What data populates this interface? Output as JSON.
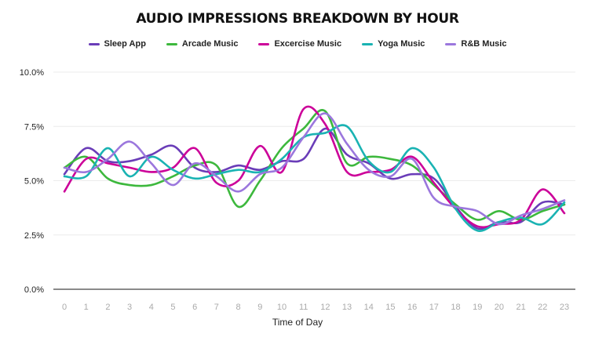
{
  "chart_data": {
    "type": "line",
    "title": "AUDIO IMPRESSIONS BREAKDOWN BY HOUR",
    "xlabel": "Time of Day",
    "ylabel": "",
    "x": [
      0,
      1,
      2,
      3,
      4,
      5,
      6,
      7,
      8,
      9,
      10,
      11,
      12,
      13,
      14,
      15,
      16,
      17,
      18,
      19,
      20,
      21,
      22,
      23
    ],
    "ylim": [
      0,
      10
    ],
    "yticks": [
      "0.0%",
      "2.5%",
      "5.0%",
      "7.5%",
      "10.0%"
    ],
    "ytick_values": [
      0,
      2.5,
      5,
      7.5,
      10
    ],
    "grid": true,
    "legend": "top",
    "series": [
      {
        "name": "Sleep App",
        "color": "#6a3db8",
        "values": [
          5.3,
          6.5,
          5.9,
          5.9,
          6.2,
          6.6,
          5.6,
          5.4,
          5.7,
          5.5,
          5.9,
          6.0,
          7.4,
          6.2,
          5.8,
          5.1,
          5.3,
          5.1,
          3.8,
          2.8,
          3.1,
          3.1,
          4.0,
          3.9
        ]
      },
      {
        "name": "Arcade Music",
        "color": "#3db83d",
        "values": [
          5.6,
          6.1,
          5.1,
          4.8,
          4.8,
          5.2,
          5.7,
          5.7,
          3.8,
          5.0,
          6.5,
          7.4,
          8.2,
          5.8,
          6.1,
          6.0,
          5.7,
          4.8,
          3.9,
          3.2,
          3.6,
          3.2,
          3.6,
          3.9
        ]
      },
      {
        "name": "Excercise Music",
        "color": "#cc0099",
        "values": [
          4.5,
          6.0,
          5.8,
          5.6,
          5.4,
          5.6,
          6.5,
          4.9,
          5.0,
          6.6,
          5.4,
          8.3,
          7.6,
          5.4,
          5.4,
          5.5,
          6.1,
          4.9,
          3.7,
          2.9,
          3.0,
          3.2,
          4.6,
          3.5
        ]
      },
      {
        "name": "Yoga Music",
        "color": "#1ab3b3",
        "values": [
          5.2,
          5.2,
          6.5,
          5.2,
          6.1,
          5.5,
          5.1,
          5.3,
          5.5,
          5.4,
          6.0,
          7.0,
          7.2,
          7.5,
          5.9,
          5.4,
          6.5,
          5.6,
          3.7,
          2.7,
          3.1,
          3.3,
          3.0,
          4.0
        ]
      },
      {
        "name": "R&B Music",
        "color": "#9b77dd",
        "values": [
          5.6,
          5.4,
          6.0,
          6.8,
          5.8,
          4.8,
          5.8,
          5.2,
          4.5,
          5.3,
          5.6,
          7.0,
          8.1,
          6.7,
          5.5,
          5.2,
          6.0,
          4.2,
          3.8,
          3.6,
          3.0,
          3.4,
          3.7,
          4.1
        ]
      }
    ]
  }
}
